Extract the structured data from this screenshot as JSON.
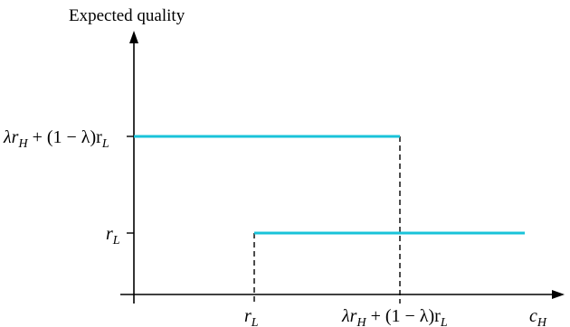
{
  "chart_data": {
    "type": "line",
    "title": "",
    "ylabel": "Expected quality",
    "xlabel": "c",
    "xlabel_sub": "H",
    "grid": false,
    "legend": "none",
    "colors": {
      "series": "#19C3D9",
      "axis": "#000000",
      "guide": "#000000"
    },
    "ticks": {
      "r_L": {
        "main": "r",
        "sub": "L"
      },
      "threshold": {
        "p1": "λr",
        "p1sub": "H",
        "p2": " + (1 − λ)r",
        "p2sub": "L"
      }
    },
    "segments": [
      {
        "from_x": "0",
        "to_x": "λr_H + (1 − λ)r_L",
        "y": "λr_H + (1 − λ)r_L"
      },
      {
        "from_x": "r_L",
        "to_x": "beyond",
        "y": "r_L"
      }
    ]
  }
}
